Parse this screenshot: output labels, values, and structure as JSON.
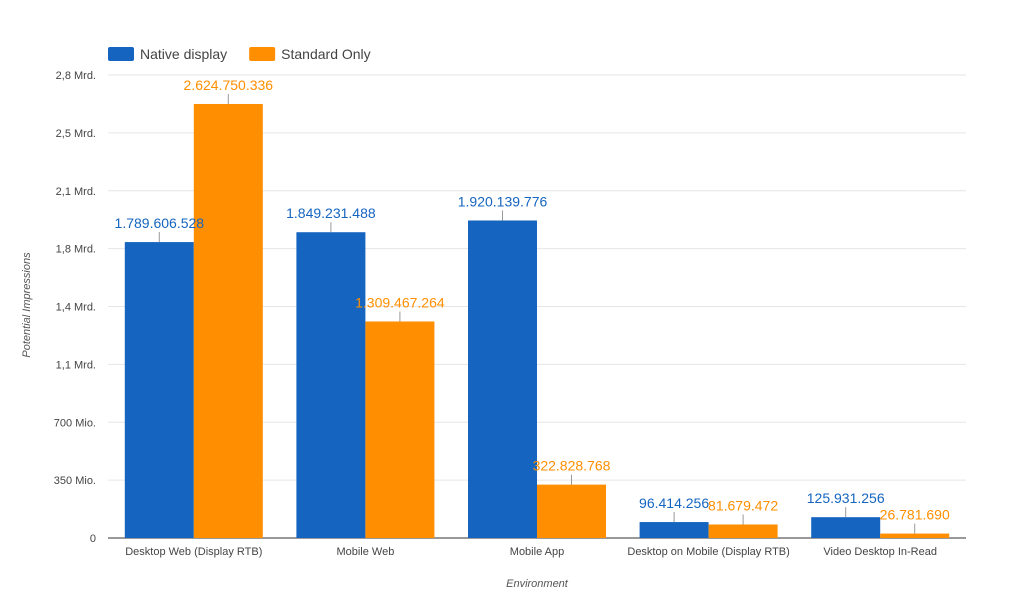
{
  "chart_data": {
    "type": "bar",
    "title": "",
    "xlabel": "Environment",
    "ylabel": "Potential Impressions",
    "categories": [
      "Desktop Web (Display RTB)",
      "Mobile Web",
      "Mobile App",
      "Desktop on Mobile (Display RTB)",
      "Video Desktop In-Read"
    ],
    "series": [
      {
        "name": "Native display",
        "color": "#1565c0",
        "values": [
          1789606528,
          1849231488,
          1920139776,
          96414256,
          125931256
        ],
        "labels": [
          "1.789.606.528",
          "1.849.231.488",
          "1.920.139.776",
          "96.414.256",
          "125.931.256"
        ]
      },
      {
        "name": "Standard Only",
        "color": "#ff8f00",
        "values": [
          2624750336,
          1309467264,
          322828768,
          81679472,
          26781690
        ],
        "labels": [
          "2.624.750.336",
          "1.309.467.264",
          "322.828.768",
          "81.679.472",
          "26.781.690"
        ]
      }
    ],
    "yticks": [
      {
        "value": 0,
        "label": "0"
      },
      {
        "value": 350000000,
        "label": "350 Mio."
      },
      {
        "value": 700000000,
        "label": "700 Mio."
      },
      {
        "value": 1050000000,
        "label": "1,1 Mrd."
      },
      {
        "value": 1400000000,
        "label": "1,4 Mrd."
      },
      {
        "value": 1750000000,
        "label": "1,8 Mrd."
      },
      {
        "value": 2100000000,
        "label": "2,1 Mrd."
      },
      {
        "value": 2450000000,
        "label": "2,5 Mrd."
      },
      {
        "value": 2800000000,
        "label": "2,8 Mrd."
      }
    ],
    "ylim": [
      0,
      2800000000
    ],
    "grid": true,
    "legend_position": "top-left"
  }
}
